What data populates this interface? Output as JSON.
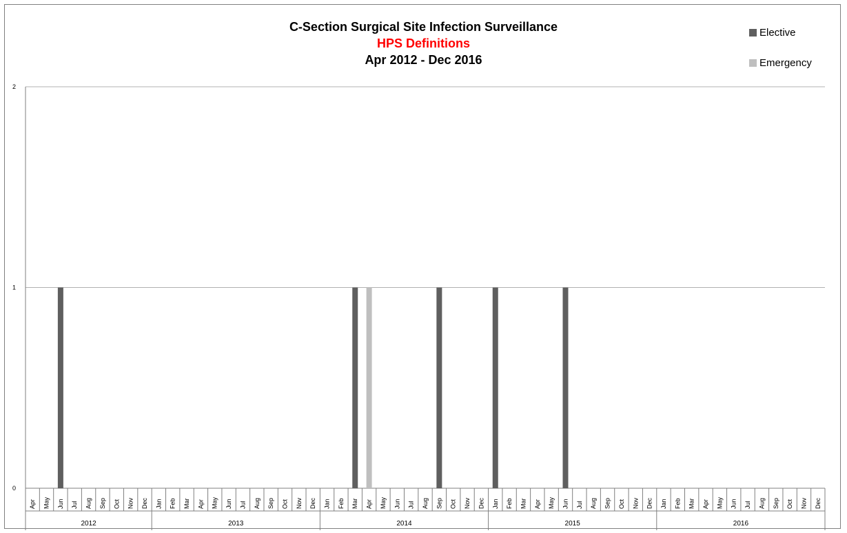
{
  "chart_data": {
    "type": "bar",
    "title": "C-Section Surgical Site Infection Surveillance",
    "subtitle": "HPS Definitions",
    "subtitle2": "Apr 2012 - Dec 2016",
    "colors": {
      "Elective": "#5f5f5f",
      "Emergency": "#bfbfbf",
      "subtitle": "#ff0000",
      "grid": "#b0b0b0"
    },
    "legend": {
      "position": "top-right"
    },
    "yaxis": {
      "ticks": [
        "0",
        "1",
        "2"
      ],
      "ylim": [
        0,
        2
      ]
    },
    "years": [
      {
        "label": "2012",
        "months": [
          "Apr",
          "May",
          "Jun",
          "Jul",
          "Aug",
          "Sep",
          "Oct",
          "Nov",
          "Dec"
        ]
      },
      {
        "label": "2013",
        "months": [
          "Jan",
          "Feb",
          "Mar",
          "Apr",
          "May",
          "Jun",
          "Jul",
          "Aug",
          "Sep",
          "Oct",
          "Nov",
          "Dec"
        ]
      },
      {
        "label": "2014",
        "months": [
          "Jan",
          "Feb",
          "Mar",
          "Apr",
          "May",
          "Jun",
          "Jul",
          "Aug",
          "Sep",
          "Oct",
          "Nov",
          "Dec"
        ]
      },
      {
        "label": "2015",
        "months": [
          "Jan",
          "Feb",
          "Mar",
          "Apr",
          "May",
          "Jun",
          "Jul",
          "Aug",
          "Sep",
          "Oct",
          "Nov",
          "Dec"
        ]
      },
      {
        "label": "2016",
        "months": [
          "Jan",
          "Feb",
          "Mar",
          "Apr",
          "May",
          "Jun",
          "Jul",
          "Aug",
          "Sep",
          "Oct",
          "Nov",
          "Dec"
        ]
      }
    ],
    "series": [
      {
        "name": "Elective",
        "points": [
          {
            "x": "Jun 2012",
            "y": 1
          },
          {
            "x": "Mar 2014",
            "y": 1
          },
          {
            "x": "Sep 2014",
            "y": 1
          },
          {
            "x": "Jan 2015",
            "y": 1
          },
          {
            "x": "Jun 2015",
            "y": 1
          }
        ]
      },
      {
        "name": "Emergency",
        "points": [
          {
            "x": "Apr 2014",
            "y": 1
          }
        ]
      }
    ]
  }
}
